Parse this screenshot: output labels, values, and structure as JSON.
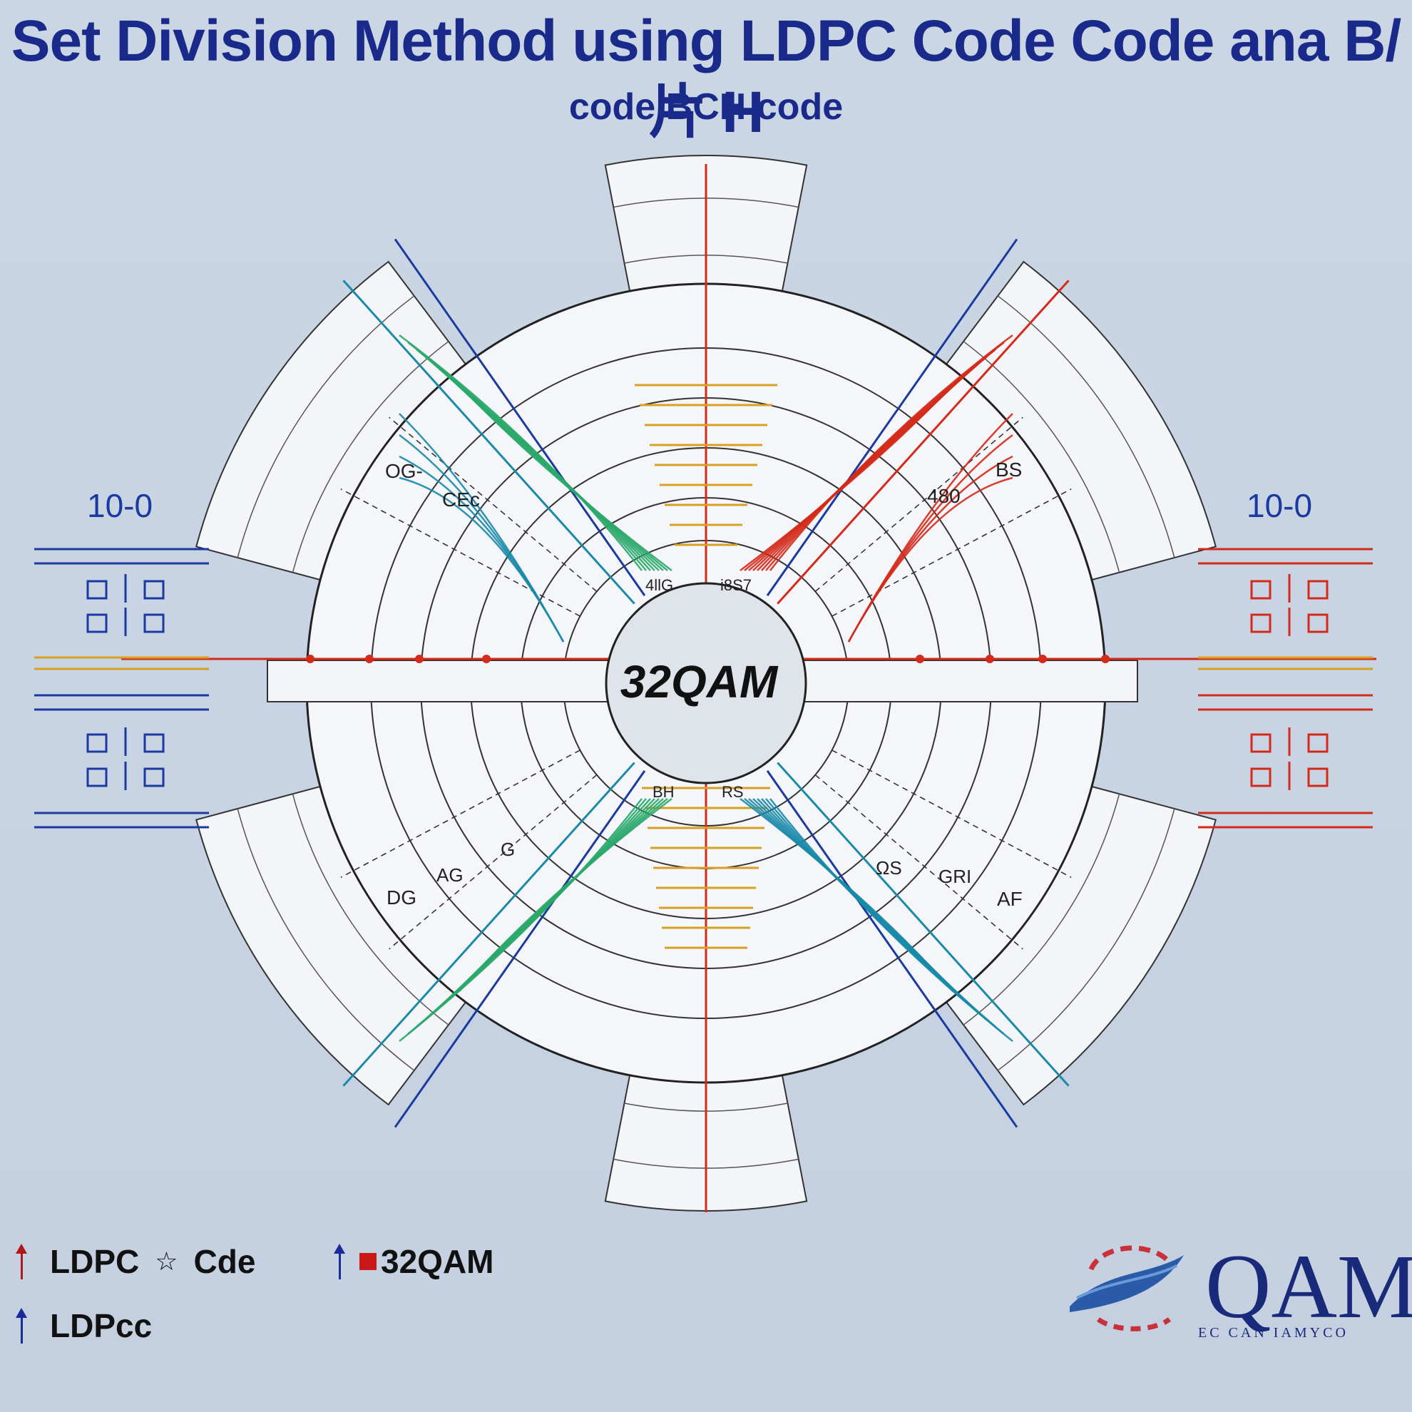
{
  "title": {
    "line1": "Set Division Method using LDPC Code Code ana B/片 H",
    "line2": "code  BCH code"
  },
  "center_label": "32QAM",
  "side_labels": {
    "left": "10-0",
    "right": "10-0"
  },
  "ring_labels": {
    "upper_left_outer": "OG-",
    "upper_left_inner": "CEc",
    "upper_right_inner": "480",
    "upper_right_outer": "BS",
    "inner_top_left": "4llG",
    "inner_top_right": "i8S7",
    "inner_bottom_left": "BH",
    "inner_bottom_right": "RS",
    "lower_left_outer": "DG",
    "lower_left_mid": "AG",
    "lower_left_inner": "G",
    "lower_right_inner": "ΩS",
    "lower_right_mid": "GRI",
    "lower_right_outer": "AF"
  },
  "legend": {
    "item1": {
      "label_a": "LDPC",
      "symbol": "☆",
      "label_b": "Cde",
      "color": "#b01818"
    },
    "item2": {
      "label": "LDPcc",
      "color": "#1a2a9a"
    },
    "item3": {
      "label": "32QAM",
      "color": "#1a2a9a",
      "square_color": "#c81818"
    }
  },
  "logo": {
    "text": "QAM",
    "subtext": "EC  CAN IAMYCO"
  },
  "colors": {
    "title": "#1a2a8a",
    "red": "#d42a1a",
    "blue": "#1a3aa0",
    "green": "#2aa86a",
    "teal": "#1a8aa8",
    "gold": "#d8a020"
  }
}
